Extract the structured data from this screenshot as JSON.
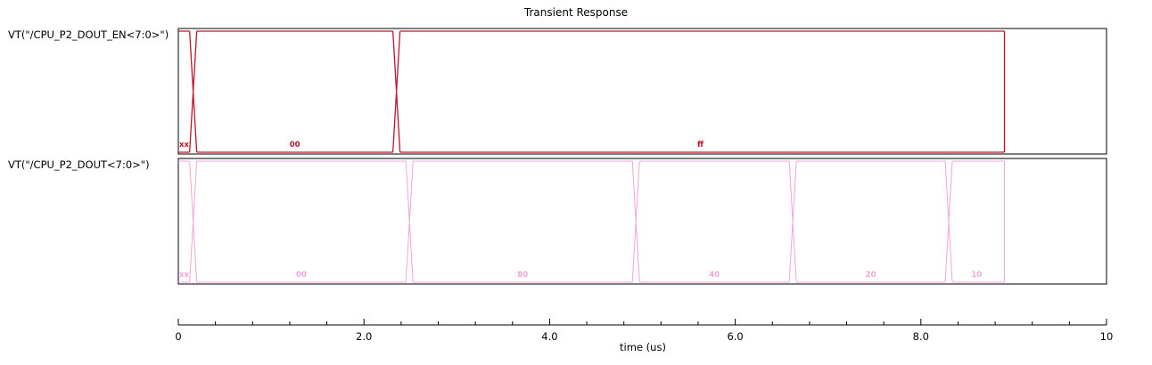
{
  "chart_data": {
    "type": "line",
    "title": "Transient Response",
    "xlabel": "time (us)",
    "xlim": [
      0,
      10
    ],
    "x_ticks": [
      "0",
      "2.0",
      "4.0",
      "6.0",
      "8.0",
      "10"
    ],
    "x_major_step": 2,
    "x_minor_step": 0.4,
    "end_time": 8.9,
    "grid": false,
    "series": [
      {
        "name": "VT(\"/CPU_P2_DOUT_EN<7:0>\")",
        "color": "#c0142a",
        "segments": [
          {
            "start": 0.0,
            "end": 0.16,
            "value": "xx"
          },
          {
            "start": 0.16,
            "end": 2.35,
            "value": "00"
          },
          {
            "start": 2.35,
            "end": 8.9,
            "value": "ff"
          }
        ]
      },
      {
        "name": "VT(\"/CPU_P2_DOUT<7:0>\")",
        "color": "#f0a6d8",
        "segments": [
          {
            "start": 0.0,
            "end": 0.16,
            "value": "xx"
          },
          {
            "start": 0.16,
            "end": 2.49,
            "value": "00"
          },
          {
            "start": 2.49,
            "end": 4.93,
            "value": "80"
          },
          {
            "start": 4.93,
            "end": 6.62,
            "value": "40"
          },
          {
            "start": 6.62,
            "end": 8.3,
            "value": "20"
          },
          {
            "start": 8.3,
            "end": 8.9,
            "value": "10"
          }
        ]
      }
    ]
  }
}
